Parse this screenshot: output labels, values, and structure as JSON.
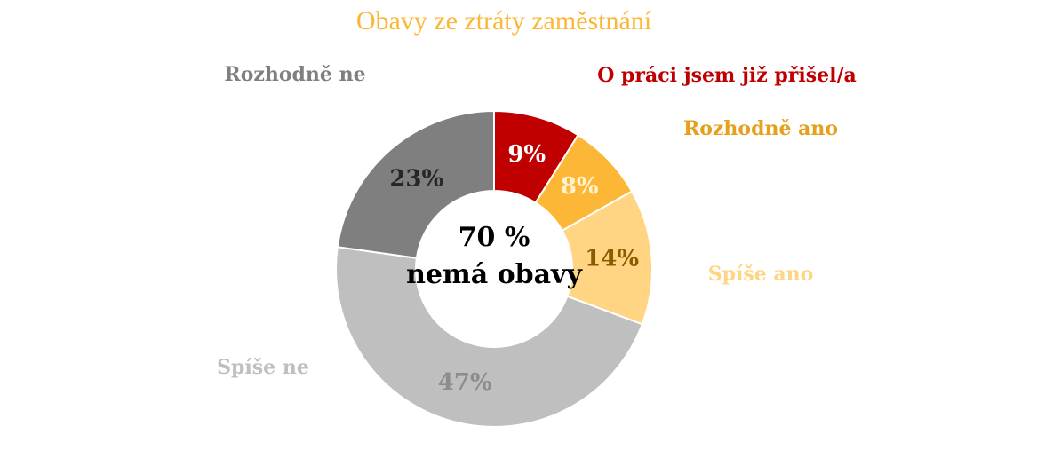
{
  "chart_data": {
    "type": "donut",
    "title": "Obavy ze ztráty zaměstnání",
    "categories": [
      "O práci jsem již přišel/a",
      "Rozhodně ano",
      "Spíše ano",
      "Spíše ne",
      "Rozhodně ne"
    ],
    "values": [
      9,
      8,
      14,
      47,
      23
    ],
    "value_labels": [
      "9%",
      "8%",
      "14%",
      "47%",
      "23%"
    ],
    "colors": [
      "#c00000",
      "#fbb735",
      "#ffd583",
      "#bfbfbf",
      "#7f7f7f"
    ],
    "category_label_colors": [
      "#c00000",
      "#e5a11d",
      "#ffd583",
      "#bfbfbf",
      "#7f7f7f"
    ],
    "value_label_colors": [
      "#ffffff",
      "#fff2cc",
      "#8a5c00",
      "#8c8c8c",
      "#262626"
    ],
    "center_text": [
      "70 %",
      "nemá obavy"
    ]
  }
}
